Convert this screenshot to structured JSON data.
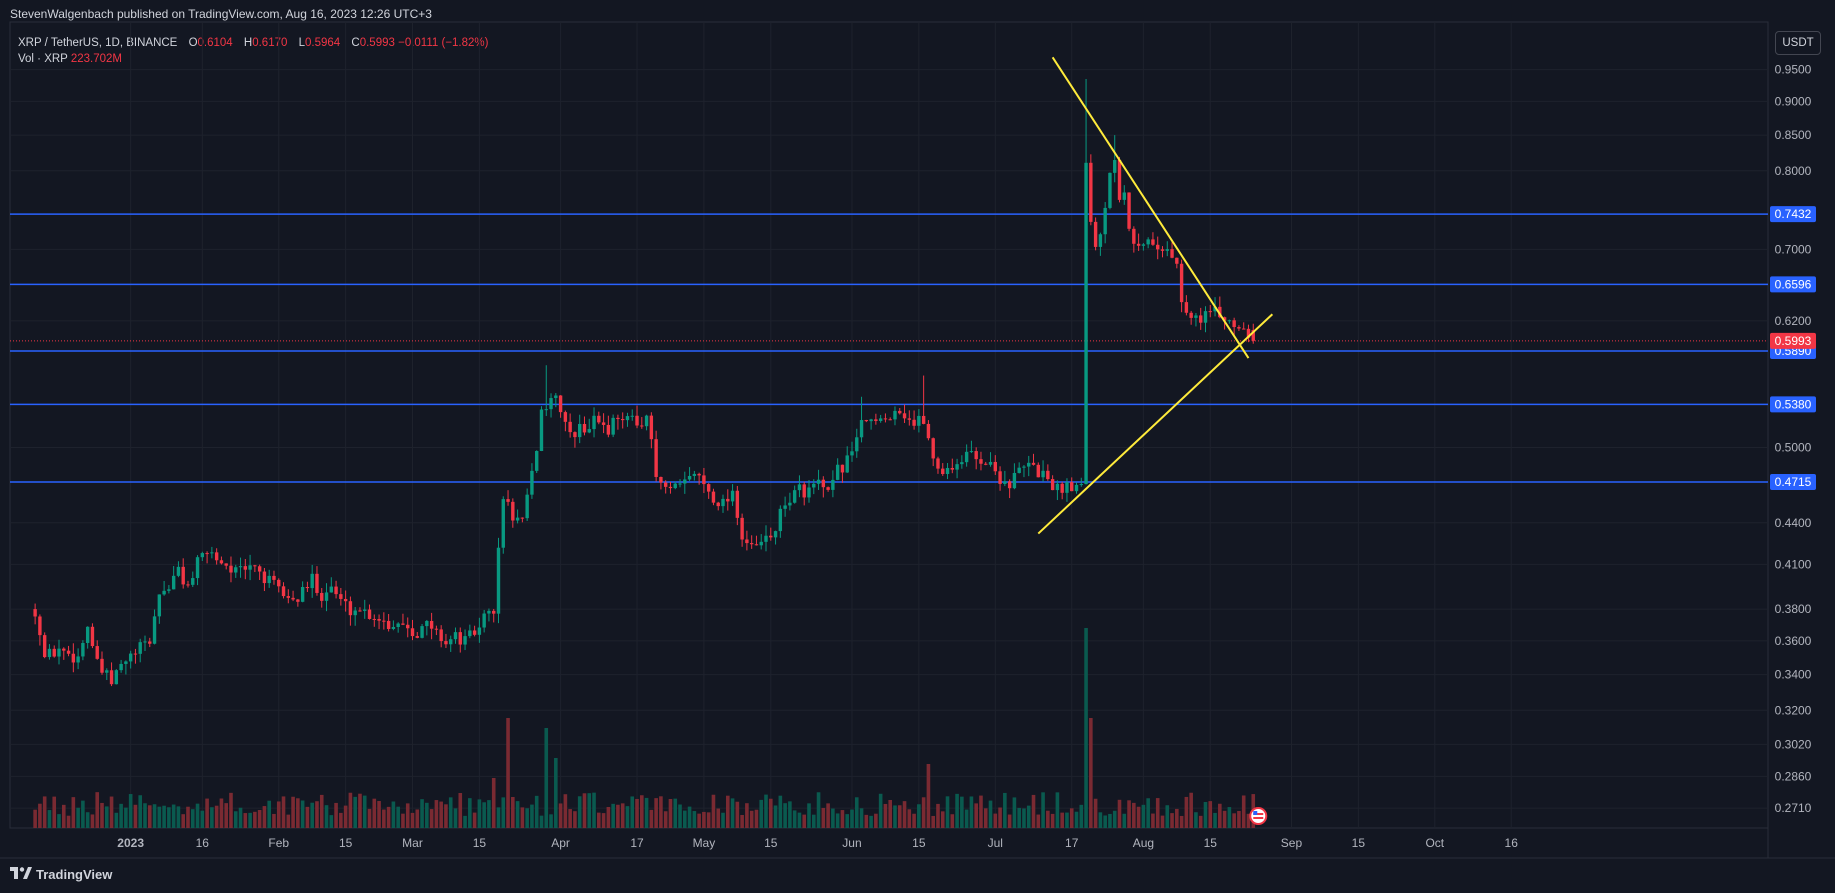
{
  "publisher_line": "StevenWalgenbach published on TradingView.com, Aug 16, 2023 12:26 UTC+3",
  "legend": {
    "symbol_line": "XRP / TetherUS, 1D, BINANCE",
    "open_label": "O",
    "open": "0.6104",
    "high_label": "H",
    "high": "0.6170",
    "low_label": "L",
    "low": "0.5964",
    "close_label": "C",
    "close": "0.5993",
    "change": "−0.0111 (−1.82%)",
    "vol_label": "Vol · XRP",
    "vol_value": "223.702M"
  },
  "currency_button": "USDT",
  "footer": {
    "brand": "TradingView"
  },
  "colors": {
    "background": "#131722",
    "up": "#089981",
    "down": "#f23645",
    "up_volume": "#0a5a4f",
    "down_volume": "#7a2a32",
    "level_line": "#2962ff",
    "trendline": "#ffeb3b",
    "grid": "#1e222d"
  },
  "chart_data": {
    "type": "candlestick",
    "y_scale": "log",
    "y_range": [
      0.262,
      1.03
    ],
    "price_ticks": [
      "0.9500",
      "0.9000",
      "0.8500",
      "0.8000",
      "0.7000",
      "0.6200",
      "0.5000",
      "0.4400",
      "0.4100",
      "0.3800",
      "0.3600",
      "0.3400",
      "0.3200",
      "0.3020",
      "0.2860",
      "0.2710"
    ],
    "price_tick_values": [
      0.95,
      0.9,
      0.85,
      0.8,
      0.7,
      0.62,
      0.5,
      0.44,
      0.41,
      0.38,
      0.36,
      0.34,
      0.32,
      0.302,
      0.286,
      0.271
    ],
    "x_ticks": [
      {
        "label": "2023",
        "day": 6
      },
      {
        "label": "16",
        "day": 21
      },
      {
        "label": "Feb",
        "day": 37
      },
      {
        "label": "15",
        "day": 51
      },
      {
        "label": "Mar",
        "day": 65
      },
      {
        "label": "15",
        "day": 79
      },
      {
        "label": "Apr",
        "day": 96
      },
      {
        "label": "17",
        "day": 112
      },
      {
        "label": "May",
        "day": 126
      },
      {
        "label": "15",
        "day": 140
      },
      {
        "label": "Jun",
        "day": 157
      },
      {
        "label": "15",
        "day": 171
      },
      {
        "label": "Jul",
        "day": 187
      },
      {
        "label": "17",
        "day": 203
      },
      {
        "label": "Aug",
        "day": 218
      },
      {
        "label": "15",
        "day": 232
      },
      {
        "label": "Sep",
        "day": 249
      },
      {
        "label": "15",
        "day": 263
      },
      {
        "label": "Oct",
        "day": 279
      },
      {
        "label": "16",
        "day": 295
      }
    ],
    "levels": [
      {
        "value": 0.7432,
        "label": "0.7432"
      },
      {
        "value": 0.6596,
        "label": "0.6596"
      },
      {
        "value": 0.589,
        "label": "0.5890"
      },
      {
        "value": 0.538,
        "label": "0.5380"
      },
      {
        "value": 0.4715,
        "label": "0.4715"
      }
    ],
    "last_price": {
      "value": 0.5993,
      "label": "0.5993"
    },
    "trendlines": [
      {
        "name": "descending-resistance",
        "from": {
          "day": 199,
          "price": 0.97
        },
        "to": {
          "day": 240,
          "price": 0.582
        }
      },
      {
        "name": "ascending-support",
        "from": {
          "day": 196,
          "price": 0.432
        },
        "to": {
          "day": 245,
          "price": 0.627
        }
      }
    ],
    "close_path": [
      [
        -14,
        0.38
      ],
      [
        -12,
        0.35
      ],
      [
        -9,
        0.355
      ],
      [
        -5,
        0.35
      ],
      [
        -3,
        0.37
      ],
      [
        -1,
        0.345
      ],
      [
        2,
        0.335
      ],
      [
        4,
        0.345
      ],
      [
        6,
        0.35
      ],
      [
        8,
        0.355
      ],
      [
        10,
        0.36
      ],
      [
        12,
        0.39
      ],
      [
        14,
        0.395
      ],
      [
        16,
        0.405
      ],
      [
        18,
        0.395
      ],
      [
        20,
        0.41
      ],
      [
        22,
        0.42
      ],
      [
        24,
        0.415
      ],
      [
        26,
        0.41
      ],
      [
        28,
        0.405
      ],
      [
        30,
        0.405
      ],
      [
        32,
        0.41
      ],
      [
        34,
        0.4
      ],
      [
        36,
        0.395
      ],
      [
        38,
        0.39
      ],
      [
        40,
        0.385
      ],
      [
        42,
        0.39
      ],
      [
        44,
        0.4
      ],
      [
        46,
        0.39
      ],
      [
        48,
        0.395
      ],
      [
        50,
        0.385
      ],
      [
        52,
        0.38
      ],
      [
        54,
        0.38
      ],
      [
        56,
        0.377
      ],
      [
        58,
        0.375
      ],
      [
        60,
        0.37
      ],
      [
        62,
        0.372
      ],
      [
        64,
        0.37
      ],
      [
        66,
        0.365
      ],
      [
        68,
        0.37
      ],
      [
        70,
        0.365
      ],
      [
        72,
        0.36
      ],
      [
        74,
        0.362
      ],
      [
        76,
        0.36
      ],
      [
        78,
        0.365
      ],
      [
        80,
        0.375
      ],
      [
        82,
        0.38
      ],
      [
        84,
        0.46
      ],
      [
        86,
        0.445
      ],
      [
        88,
        0.44
      ],
      [
        90,
        0.475
      ],
      [
        92,
        0.53
      ],
      [
        94,
        0.545
      ],
      [
        96,
        0.535
      ],
      [
        98,
        0.51
      ],
      [
        100,
        0.515
      ],
      [
        102,
        0.52
      ],
      [
        104,
        0.525
      ],
      [
        106,
        0.515
      ],
      [
        108,
        0.53
      ],
      [
        110,
        0.525
      ],
      [
        112,
        0.52
      ],
      [
        114,
        0.53
      ],
      [
        116,
        0.475
      ],
      [
        118,
        0.465
      ],
      [
        120,
        0.465
      ],
      [
        122,
        0.47
      ],
      [
        124,
        0.48
      ],
      [
        126,
        0.47
      ],
      [
        128,
        0.46
      ],
      [
        130,
        0.455
      ],
      [
        132,
        0.465
      ],
      [
        134,
        0.43
      ],
      [
        136,
        0.42
      ],
      [
        138,
        0.425
      ],
      [
        140,
        0.43
      ],
      [
        142,
        0.445
      ],
      [
        144,
        0.46
      ],
      [
        146,
        0.465
      ],
      [
        148,
        0.465
      ],
      [
        150,
        0.47
      ],
      [
        152,
        0.46
      ],
      [
        154,
        0.48
      ],
      [
        156,
        0.49
      ],
      [
        158,
        0.51
      ],
      [
        160,
        0.525
      ],
      [
        162,
        0.52
      ],
      [
        164,
        0.525
      ],
      [
        166,
        0.535
      ],
      [
        168,
        0.53
      ],
      [
        170,
        0.52
      ],
      [
        172,
        0.525
      ],
      [
        174,
        0.49
      ],
      [
        176,
        0.48
      ],
      [
        178,
        0.485
      ],
      [
        180,
        0.49
      ],
      [
        182,
        0.495
      ],
      [
        184,
        0.49
      ],
      [
        186,
        0.485
      ],
      [
        188,
        0.475
      ],
      [
        190,
        0.47
      ],
      [
        192,
        0.48
      ],
      [
        194,
        0.485
      ],
      [
        196,
        0.48
      ],
      [
        198,
        0.475
      ],
      [
        200,
        0.465
      ],
      [
        202,
        0.47
      ],
      [
        204,
        0.47
      ],
      [
        205,
        0.47
      ],
      [
        206,
        0.82
      ],
      [
        207,
        0.74
      ],
      [
        208,
        0.7
      ],
      [
        209,
        0.72
      ],
      [
        211,
        0.8
      ],
      [
        212,
        0.82
      ],
      [
        213,
        0.77
      ],
      [
        214,
        0.78
      ],
      [
        215,
        0.73
      ],
      [
        217,
        0.7
      ],
      [
        219,
        0.71
      ],
      [
        221,
        0.7
      ],
      [
        223,
        0.705
      ],
      [
        225,
        0.68
      ],
      [
        226,
        0.64
      ],
      [
        228,
        0.62
      ],
      [
        230,
        0.625
      ],
      [
        232,
        0.63
      ],
      [
        234,
        0.625
      ],
      [
        236,
        0.62
      ],
      [
        238,
        0.615
      ],
      [
        240,
        0.61
      ],
      [
        241,
        0.5993
      ]
    ],
    "wick_spikes": [
      [
        93,
        0.575
      ],
      [
        115,
        0.46
      ],
      [
        159,
        0.545
      ],
      [
        172,
        0.565
      ],
      [
        206,
        0.935
      ],
      [
        212,
        0.85
      ]
    ],
    "volume_range": [
      0,
      1.0
    ],
    "volume_spikes": [
      [
        85,
        0.55
      ],
      [
        93,
        0.5
      ],
      [
        206,
        1.0
      ],
      [
        207,
        0.55
      ],
      [
        95,
        0.35
      ],
      [
        173,
        0.32
      ],
      [
        82,
        0.25
      ]
    ]
  }
}
